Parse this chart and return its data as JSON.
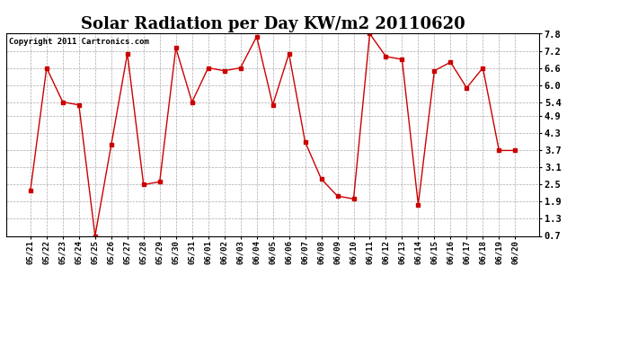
{
  "title": "Solar Radiation per Day KW/m2 20110620",
  "copyright": "Copyright 2011 Cartronics.com",
  "labels": [
    "05/21",
    "05/22",
    "05/23",
    "05/24",
    "05/25",
    "05/26",
    "05/27",
    "05/28",
    "05/29",
    "05/30",
    "05/31",
    "06/01",
    "06/02",
    "06/03",
    "06/04",
    "06/05",
    "06/06",
    "06/07",
    "06/08",
    "06/09",
    "06/10",
    "06/11",
    "06/12",
    "06/13",
    "06/14",
    "06/15",
    "06/16",
    "06/17",
    "06/18",
    "06/19",
    "06/20"
  ],
  "values": [
    2.3,
    6.6,
    5.4,
    5.3,
    0.7,
    3.9,
    7.1,
    2.5,
    2.6,
    7.3,
    5.4,
    6.6,
    6.5,
    6.6,
    7.7,
    5.3,
    7.1,
    4.0,
    2.7,
    2.1,
    2.0,
    7.8,
    7.0,
    6.9,
    1.8,
    6.5,
    6.8,
    5.9,
    6.6,
    3.7,
    3.7
  ],
  "line_color": "#cc0000",
  "marker": "s",
  "marker_size": 2.5,
  "bg_color": "#ffffff",
  "plot_bg_color": "#ffffff",
  "grid_color": "#aaaaaa",
  "ylim": [
    0.7,
    7.8
  ],
  "yticks": [
    0.7,
    1.3,
    1.9,
    2.5,
    3.1,
    3.7,
    4.3,
    4.9,
    5.4,
    6.0,
    6.6,
    7.2,
    7.8
  ],
  "title_fontsize": 13,
  "tick_fontsize": 6.5,
  "copyright_fontsize": 6.5
}
